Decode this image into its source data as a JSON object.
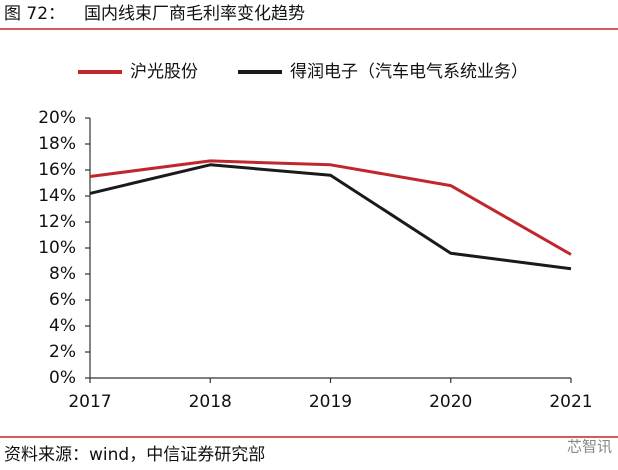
{
  "chart_data": {
    "type": "line",
    "figure_label": "图 72：",
    "title": "国内线束厂商毛利率变化趋势",
    "categories": [
      "2017",
      "2018",
      "2019",
      "2020",
      "2021"
    ],
    "series": [
      {
        "name": "沪光股份",
        "color": "#c0272d",
        "values": [
          15.5,
          16.7,
          16.4,
          14.8,
          9.5
        ]
      },
      {
        "name": "得润电子（汽车电气系统业务）",
        "color": "#1a1a1a",
        "values": [
          14.2,
          16.4,
          15.6,
          9.6,
          8.4
        ]
      }
    ],
    "ylim": [
      0,
      20
    ],
    "yticks": [
      {
        "value": 0,
        "label": "0%"
      },
      {
        "value": 2,
        "label": "2%"
      },
      {
        "value": 4,
        "label": "4%"
      },
      {
        "value": 6,
        "label": "6%"
      },
      {
        "value": 8,
        "label": "8%"
      },
      {
        "value": 10,
        "label": "10%"
      },
      {
        "value": 12,
        "label": "12%"
      },
      {
        "value": 14,
        "label": "14%"
      },
      {
        "value": 16,
        "label": "16%"
      },
      {
        "value": 18,
        "label": "18%"
      },
      {
        "value": 20,
        "label": "20%"
      }
    ],
    "grid": false,
    "source": "资料来源：wind，中信证券研究部",
    "watermark": "芯智讯"
  }
}
